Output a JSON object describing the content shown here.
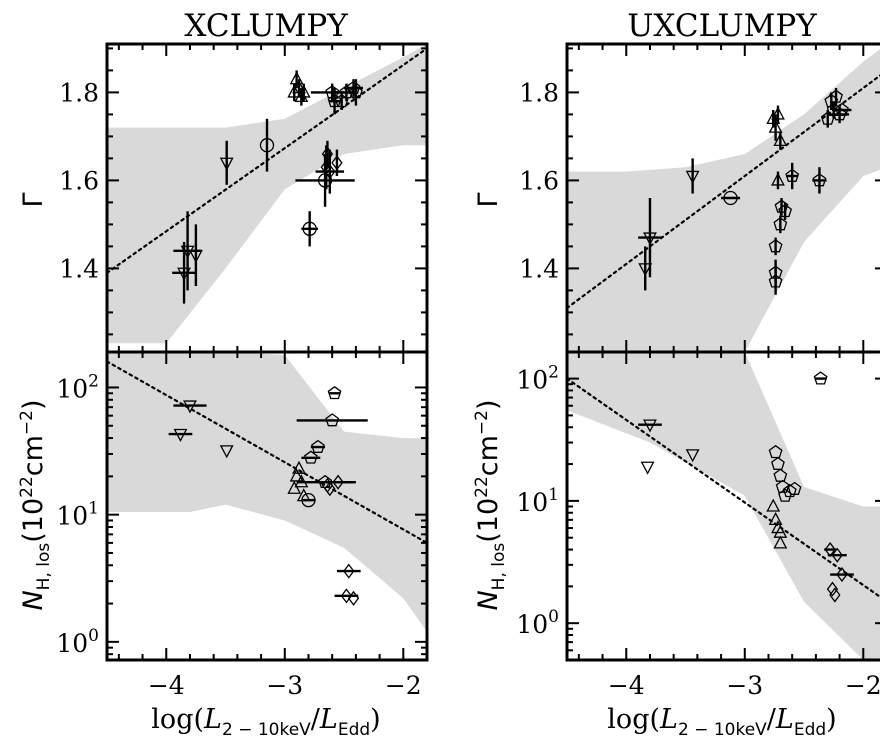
{
  "figure": {
    "panel_titles": [
      "XCLUMPY",
      "UXCLUMPY"
    ],
    "xlabel": {
      "prefix": "log(",
      "L": "L",
      "L_sub": "2 − 10keV",
      "slash": "/",
      "L2": "L",
      "L2_sub": "Edd",
      "suffix": ")"
    },
    "ylabel_gamma": "Γ",
    "ylabel_nh": {
      "N": "N",
      "sub": "H, los",
      "unit": "(10",
      "exp": "22",
      "unit2": "cm",
      "exp2": "−2",
      "close": ")"
    }
  },
  "chart_data": [
    {
      "type": "scatter",
      "panel": "XCLUMPY",
      "ylabel": "Γ",
      "xlim": [
        -4.5,
        -1.8
      ],
      "ylim": [
        1.21,
        1.91
      ],
      "yticks": [
        1.4,
        1.6,
        1.8
      ],
      "ytick_labels": [
        "1.4",
        "1.6",
        "1.8"
      ],
      "fit_line": {
        "x": [
          -4.5,
          -1.8
        ],
        "y": [
          1.39,
          1.9
        ]
      },
      "confidence_band": {
        "x": [
          -4.5,
          -4.0,
          -3.5,
          -3.0,
          -2.5,
          -2.0,
          -1.8
        ],
        "upper": [
          1.72,
          1.72,
          1.72,
          1.74,
          1.81,
          1.88,
          1.91
        ],
        "lower": [
          1.23,
          1.23,
          1.4,
          1.58,
          1.66,
          1.68,
          1.68
        ]
      },
      "points": [
        {
          "x": -3.85,
          "y": 1.39,
          "xerr": 0.1,
          "yerr": 0.07,
          "marker": "triangle-down"
        },
        {
          "x": -3.82,
          "y": 1.44,
          "xerr": 0.12,
          "yerr": 0.09,
          "marker": "triangle-down"
        },
        {
          "x": -3.75,
          "y": 1.43,
          "xerr": 0.0,
          "yerr": 0.07,
          "marker": "triangle-down"
        },
        {
          "x": -3.49,
          "y": 1.64,
          "xerr": 0.0,
          "yerr": 0.05,
          "marker": "triangle-down"
        },
        {
          "x": -3.15,
          "y": 1.68,
          "xerr": 0.0,
          "yerr": 0.06,
          "marker": "circle"
        },
        {
          "x": -2.92,
          "y": 1.8,
          "xerr": 0.0,
          "yerr": 0.02,
          "marker": "triangle-up"
        },
        {
          "x": -2.9,
          "y": 1.83,
          "xerr": 0.0,
          "yerr": 0.02,
          "marker": "triangle-up"
        },
        {
          "x": -2.88,
          "y": 1.81,
          "xerr": 0.0,
          "yerr": 0.02,
          "marker": "triangle-up"
        },
        {
          "x": -2.86,
          "y": 1.79,
          "xerr": 0.0,
          "yerr": 0.02,
          "marker": "triangle-up"
        },
        {
          "x": -2.84,
          "y": 1.8,
          "xerr": 0.0,
          "yerr": 0.02,
          "marker": "triangle-up"
        },
        {
          "x": -2.79,
          "y": 1.49,
          "xerr": 0.07,
          "yerr": 0.04,
          "marker": "circle"
        },
        {
          "x": -2.66,
          "y": 1.6,
          "xerr": 0.25,
          "yerr": 0.06,
          "marker": "circle"
        },
        {
          "x": -2.65,
          "y": 1.63,
          "xerr": 0.0,
          "yerr": 0.05,
          "marker": "diamond"
        },
        {
          "x": -2.64,
          "y": 1.66,
          "xerr": 0.0,
          "yerr": 0.03,
          "marker": "diamond"
        },
        {
          "x": -2.62,
          "y": 1.62,
          "xerr": 0.12,
          "yerr": 0.05,
          "marker": "diamond"
        },
        {
          "x": -2.6,
          "y": 1.8,
          "xerr": 0.18,
          "yerr": 0.02,
          "marker": "pentagon"
        },
        {
          "x": -2.58,
          "y": 1.78,
          "xerr": 0.05,
          "yerr": 0.03,
          "marker": "pentagon"
        },
        {
          "x": -2.56,
          "y": 1.64,
          "xerr": 0.0,
          "yerr": 0.03,
          "marker": "diamond"
        },
        {
          "x": -2.52,
          "y": 1.78,
          "xerr": 0.0,
          "yerr": 0.02,
          "marker": "pentagon"
        },
        {
          "x": -2.48,
          "y": 1.8,
          "xerr": 0.1,
          "yerr": 0.02,
          "marker": "pentagon"
        },
        {
          "x": -2.42,
          "y": 1.81,
          "xerr": 0.08,
          "yerr": 0.02,
          "marker": "pentagon"
        },
        {
          "x": -2.4,
          "y": 1.8,
          "xerr": 0.0,
          "yerr": 0.03,
          "marker": "pentagon"
        }
      ]
    },
    {
      "type": "scatter",
      "panel": "UXCLUMPY",
      "ylabel": "Γ",
      "xlim": [
        -4.5,
        -1.8
      ],
      "ylim": [
        1.21,
        1.91
      ],
      "yticks": [
        1.4,
        1.6,
        1.8
      ],
      "ytick_labels": [
        "1.4",
        "1.6",
        "1.8"
      ],
      "fit_line": {
        "x": [
          -4.5,
          -1.8
        ],
        "y": [
          1.31,
          1.85
        ]
      },
      "confidence_band": {
        "x": [
          -4.5,
          -4.0,
          -3.5,
          -3.0,
          -2.5,
          -2.0,
          -1.8
        ],
        "upper": [
          1.62,
          1.62,
          1.63,
          1.66,
          1.75,
          1.87,
          1.91
        ],
        "lower": [
          1.21,
          1.21,
          1.21,
          1.21,
          1.46,
          1.61,
          1.63
        ]
      },
      "points": [
        {
          "x": -3.84,
          "y": 1.4,
          "xerr": 0.0,
          "yerr": 0.05,
          "marker": "triangle-down"
        },
        {
          "x": -3.8,
          "y": 1.47,
          "xerr": 0.1,
          "yerr": 0.09,
          "marker": "triangle-down"
        },
        {
          "x": -3.44,
          "y": 1.61,
          "xerr": 0.0,
          "yerr": 0.04,
          "marker": "triangle-down"
        },
        {
          "x": -3.12,
          "y": 1.56,
          "xerr": 0.08,
          "yerr": 0.0,
          "marker": "circle"
        },
        {
          "x": -2.76,
          "y": 1.74,
          "xerr": 0.0,
          "yerr": 0.02,
          "marker": "triangle-up"
        },
        {
          "x": -2.74,
          "y": 1.72,
          "xerr": 0.0,
          "yerr": 0.03,
          "marker": "triangle-up"
        },
        {
          "x": -2.72,
          "y": 1.75,
          "xerr": 0.0,
          "yerr": 0.02,
          "marker": "triangle-up"
        },
        {
          "x": -2.7,
          "y": 1.69,
          "xerr": 0.0,
          "yerr": 0.02,
          "marker": "triangle-up"
        },
        {
          "x": -2.72,
          "y": 1.6,
          "xerr": 0.0,
          "yerr": 0.02,
          "marker": "triangle-up"
        },
        {
          "x": -2.74,
          "y": 1.37,
          "xerr": 0.0,
          "yerr": 0.03,
          "marker": "pentagon"
        },
        {
          "x": -2.74,
          "y": 1.39,
          "xerr": 0.0,
          "yerr": 0.03,
          "marker": "pentagon"
        },
        {
          "x": -2.74,
          "y": 1.45,
          "xerr": 0.0,
          "yerr": 0.02,
          "marker": "pentagon"
        },
        {
          "x": -2.7,
          "y": 1.5,
          "xerr": 0.0,
          "yerr": 0.02,
          "marker": "pentagon"
        },
        {
          "x": -2.69,
          "y": 1.54,
          "xerr": 0.0,
          "yerr": 0.02,
          "marker": "pentagon"
        },
        {
          "x": -2.66,
          "y": 1.53,
          "xerr": 0.0,
          "yerr": 0.02,
          "marker": "pentagon"
        },
        {
          "x": -2.6,
          "y": 1.61,
          "xerr": 0.05,
          "yerr": 0.03,
          "marker": "pentagon"
        },
        {
          "x": -2.37,
          "y": 1.6,
          "xerr": 0.06,
          "yerr": 0.03,
          "marker": "pentagon"
        },
        {
          "x": -2.3,
          "y": 1.74,
          "xerr": 0.0,
          "yerr": 0.02,
          "marker": "pentagon"
        },
        {
          "x": -2.27,
          "y": 1.78,
          "xerr": 0.0,
          "yerr": 0.02,
          "marker": "pentagon"
        },
        {
          "x": -2.25,
          "y": 1.76,
          "xerr": 0.0,
          "yerr": 0.02,
          "marker": "pentagon"
        },
        {
          "x": -2.23,
          "y": 1.79,
          "xerr": 0.0,
          "yerr": 0.02,
          "marker": "pentagon"
        },
        {
          "x": -2.2,
          "y": 1.75,
          "xerr": 0.08,
          "yerr": 0.02,
          "marker": "pentagon"
        },
        {
          "x": -2.18,
          "y": 1.76,
          "xerr": 0.08,
          "yerr": 0.0,
          "marker": "pentagon"
        }
      ]
    },
    {
      "type": "scatter",
      "panel": "XCLUMPY",
      "ylabel": "N_H,los",
      "y_scale": "log",
      "xlim": [
        -4.5,
        -1.8
      ],
      "ylim": [
        0.72,
        190
      ],
      "yticks": [
        1,
        10,
        100
      ],
      "ytick_labels": [
        "10^0",
        "10^1",
        "10^2"
      ],
      "xticks": [
        -4,
        -3,
        -2
      ],
      "xtick_labels": [
        "−4",
        "−3",
        "−2"
      ],
      "fit_line": {
        "x": [
          -4.5,
          -1.8
        ],
        "y": [
          160,
          6
        ]
      },
      "confidence_band": {
        "x": [
          -4.5,
          -3.8,
          -3.5,
          -3.0,
          -2.5,
          -2.0,
          -1.8
        ],
        "upper": [
          190,
          190,
          190,
          180,
          45,
          40,
          40
        ],
        "lower": [
          10.5,
          10.5,
          12,
          9,
          5.5,
          2.2,
          1.2
        ]
      },
      "points": [
        {
          "x": -3.88,
          "y": 43,
          "xerr": 0.1,
          "yerr": 0,
          "marker": "triangle-down"
        },
        {
          "x": -3.8,
          "y": 72,
          "xerr": 0.14,
          "yerr": 0,
          "marker": "triangle-down"
        },
        {
          "x": -3.49,
          "y": 32,
          "xerr": 0.0,
          "yerr": 0,
          "marker": "triangle-down"
        },
        {
          "x": -2.92,
          "y": 16,
          "xerr": 0.0,
          "yerr": 0,
          "marker": "triangle-up"
        },
        {
          "x": -2.9,
          "y": 20,
          "xerr": 0.0,
          "yerr": 0,
          "marker": "triangle-up"
        },
        {
          "x": -2.88,
          "y": 23,
          "xerr": 0.0,
          "yerr": 0,
          "marker": "triangle-up"
        },
        {
          "x": -2.86,
          "y": 18,
          "xerr": 0.0,
          "yerr": 0,
          "marker": "triangle-up"
        },
        {
          "x": -2.84,
          "y": 14,
          "xerr": 0.0,
          "yerr": 0,
          "marker": "triangle-up"
        },
        {
          "x": -2.8,
          "y": 13,
          "xerr": 0.06,
          "yerr": 0,
          "marker": "circle"
        },
        {
          "x": -2.78,
          "y": 28,
          "xerr": 0.08,
          "yerr": 0,
          "marker": "pentagon"
        },
        {
          "x": -2.72,
          "y": 34,
          "xerr": 0.06,
          "yerr": 0,
          "marker": "pentagon"
        },
        {
          "x": -2.66,
          "y": 18,
          "xerr": 0.24,
          "yerr": 0,
          "marker": "pentagon"
        },
        {
          "x": -2.64,
          "y": 17,
          "xerr": 0.0,
          "yerr": 0,
          "marker": "diamond"
        },
        {
          "x": -2.62,
          "y": 16,
          "xerr": 0.0,
          "yerr": 0,
          "marker": "diamond"
        },
        {
          "x": -2.6,
          "y": 55,
          "xerr": 0.3,
          "yerr": 0,
          "marker": "pentagon"
        },
        {
          "x": -2.58,
          "y": 90,
          "xerr": 0.05,
          "yerr": 0,
          "marker": "pentagon"
        },
        {
          "x": -2.55,
          "y": 18,
          "xerr": 0.15,
          "yerr": 0,
          "marker": "diamond"
        },
        {
          "x": -2.46,
          "y": 3.6,
          "xerr": 0.1,
          "yerr": 0,
          "marker": "diamond"
        },
        {
          "x": -2.48,
          "y": 2.3,
          "xerr": 0.1,
          "yerr": 0,
          "marker": "diamond"
        },
        {
          "x": -2.42,
          "y": 2.2,
          "xerr": 0.0,
          "yerr": 0,
          "marker": "diamond"
        }
      ]
    },
    {
      "type": "scatter",
      "panel": "UXCLUMPY",
      "ylabel": "N_H,los",
      "y_scale": "log",
      "xlim": [
        -4.5,
        -1.8
      ],
      "ylim": [
        0.5,
        165
      ],
      "yticks": [
        1,
        10,
        100
      ],
      "ytick_labels": [
        "10^0",
        "10^1",
        "10^2"
      ],
      "xticks": [
        -4,
        -3,
        -2
      ],
      "xtick_labels": [
        "−4",
        "−3",
        "−2"
      ],
      "fit_line": {
        "x": [
          -4.5,
          -1.8
        ],
        "y": [
          100,
          1.5
        ]
      },
      "confidence_band": {
        "x": [
          -4.5,
          -3.8,
          -3.0,
          -2.5,
          -2.0,
          -1.8
        ],
        "upper": [
          165,
          165,
          165,
          13,
          9,
          9
        ],
        "lower": [
          55,
          30,
          11,
          1.5,
          0.5,
          0.5
        ]
      },
      "points": [
        {
          "x": -3.82,
          "y": 19,
          "xerr": 0.0,
          "yerr": 0,
          "marker": "triangle-down"
        },
        {
          "x": -3.8,
          "y": 42,
          "xerr": 0.1,
          "yerr": 0,
          "marker": "triangle-down"
        },
        {
          "x": -3.44,
          "y": 24,
          "xerr": 0.0,
          "yerr": 0,
          "marker": "triangle-down"
        },
        {
          "x": -2.76,
          "y": 9,
          "xerr": 0.0,
          "yerr": 0,
          "marker": "triangle-up"
        },
        {
          "x": -2.74,
          "y": 7,
          "xerr": 0.0,
          "yerr": 0,
          "marker": "triangle-up"
        },
        {
          "x": -2.72,
          "y": 6,
          "xerr": 0.0,
          "yerr": 0,
          "marker": "triangle-up"
        },
        {
          "x": -2.7,
          "y": 5.5,
          "xerr": 0.0,
          "yerr": 0,
          "marker": "triangle-up"
        },
        {
          "x": -2.7,
          "y": 4.5,
          "xerr": 0.0,
          "yerr": 0,
          "marker": "triangle-up"
        },
        {
          "x": -2.74,
          "y": 25,
          "xerr": 0.0,
          "yerr": 0,
          "marker": "pentagon"
        },
        {
          "x": -2.72,
          "y": 20,
          "xerr": 0.0,
          "yerr": 0,
          "marker": "pentagon"
        },
        {
          "x": -2.7,
          "y": 16,
          "xerr": 0.0,
          "yerr": 0,
          "marker": "pentagon"
        },
        {
          "x": -2.68,
          "y": 13,
          "xerr": 0.0,
          "yerr": 0,
          "marker": "pentagon"
        },
        {
          "x": -2.66,
          "y": 11,
          "xerr": 0.0,
          "yerr": 0,
          "marker": "pentagon"
        },
        {
          "x": -2.62,
          "y": 12,
          "xerr": 0.0,
          "yerr": 0,
          "marker": "pentagon"
        },
        {
          "x": -2.58,
          "y": 12.5,
          "xerr": 0.0,
          "yerr": 0,
          "marker": "pentagon"
        },
        {
          "x": -2.36,
          "y": 100,
          "xerr": 0.05,
          "yerr": 0,
          "marker": "pentagon"
        },
        {
          "x": -2.28,
          "y": 4,
          "xerr": 0.05,
          "yerr": 0,
          "marker": "diamond"
        },
        {
          "x": -2.26,
          "y": 1.9,
          "xerr": 0.0,
          "yerr": 0,
          "marker": "diamond"
        },
        {
          "x": -2.24,
          "y": 1.7,
          "xerr": 0.0,
          "yerr": 0,
          "marker": "diamond"
        },
        {
          "x": -2.22,
          "y": 3.6,
          "xerr": 0.08,
          "yerr": 0,
          "marker": "diamond"
        },
        {
          "x": -2.18,
          "y": 2.5,
          "xerr": 0.1,
          "yerr": 0,
          "marker": "diamond"
        }
      ]
    }
  ]
}
